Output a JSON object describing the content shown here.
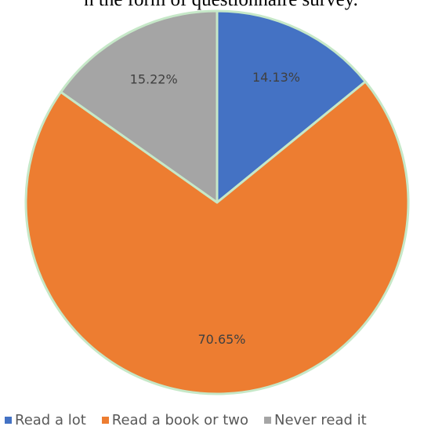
{
  "header_text": "n the form of questionnaire survey.",
  "chart_data": {
    "type": "pie",
    "start_angle_deg": 0,
    "direction": "clockwise",
    "slice_border_color": "#c6e8c8",
    "slices": [
      {
        "label": "Read a lot",
        "value": 14.13,
        "display": "14.13%",
        "color": "#4472C4"
      },
      {
        "label": "Read a book or two",
        "value": 70.65,
        "display": "70.65%",
        "color": "#ED7D31"
      },
      {
        "label": "Never read it",
        "value": 15.22,
        "display": "15.22%",
        "color": "#A5A5A5"
      }
    ],
    "legend_placement": "bottom"
  }
}
